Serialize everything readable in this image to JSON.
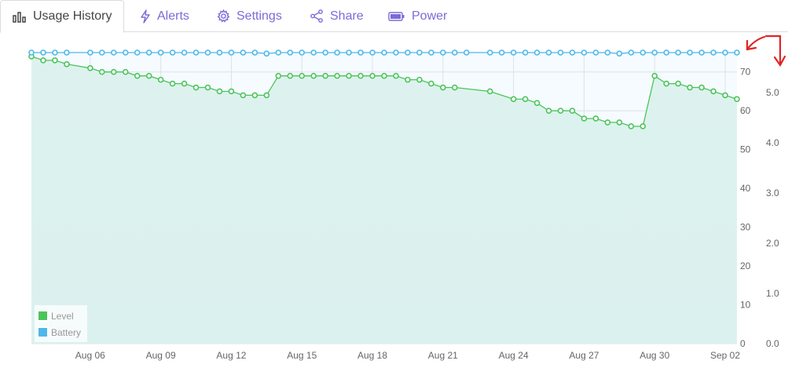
{
  "tabs": [
    {
      "label": "Usage History",
      "icon": "bar-chart-icon",
      "active": true
    },
    {
      "label": "Alerts",
      "icon": "lightning-icon",
      "active": false
    },
    {
      "label": "Settings",
      "icon": "gear-icon",
      "active": false
    },
    {
      "label": "Share",
      "icon": "share-icon",
      "active": false
    },
    {
      "label": "Power",
      "icon": "battery-icon",
      "active": false
    }
  ],
  "colors": {
    "level": "#4cc45c",
    "battery": "#4db8ea",
    "tab_text": "#7a6bd8",
    "annotation": "#e02424"
  },
  "chart_data": {
    "type": "line",
    "x_tick_labels": [
      "Aug 06",
      "Aug 09",
      "Aug 12",
      "Aug 15",
      "Aug 18",
      "Aug 21",
      "Aug 24",
      "Aug 27",
      "Aug 30",
      "Sep 02"
    ],
    "y_left": {
      "ticks": [
        "0",
        "10",
        "20",
        "30",
        "40",
        "50",
        "60",
        "70"
      ],
      "range": [
        0,
        75
      ]
    },
    "y_right": {
      "ticks": [
        "0.0",
        "1.0",
        "2.0",
        "3.0",
        "4.0",
        "5.0"
      ],
      "range": [
        0.0,
        5.8
      ]
    },
    "grid": true,
    "legend_position": "bottom-left",
    "legend": [
      "Level",
      "Battery"
    ],
    "series": [
      {
        "name": "Level",
        "axis": "left",
        "x": [
          3.5,
          4,
          4.5,
          5,
          6,
          6.5,
          7,
          7.5,
          8,
          8.5,
          9,
          9.5,
          10,
          10.5,
          11,
          11.5,
          12,
          12.5,
          13,
          13.5,
          14,
          14.5,
          15,
          15.5,
          16,
          16.5,
          17,
          17.5,
          18,
          18.5,
          19,
          19.5,
          20,
          20.5,
          21,
          21.5,
          23,
          24,
          24.5,
          25,
          25.5,
          26,
          26.5,
          27,
          27.5,
          28,
          28.5,
          29,
          29.5,
          30,
          30.5,
          31,
          31.5,
          32,
          32.5,
          33,
          33.5
        ],
        "y": [
          74,
          73,
          73,
          72,
          71,
          70,
          70,
          70,
          69,
          69,
          68,
          67,
          67,
          66,
          66,
          65,
          65,
          64,
          64,
          64,
          69,
          69,
          69,
          69,
          69,
          69,
          69,
          69,
          69,
          69,
          69,
          68,
          68,
          67,
          66,
          66,
          65,
          63,
          63,
          62,
          60,
          60,
          60,
          58,
          58,
          57,
          57,
          56,
          56,
          69,
          67,
          67,
          66,
          66,
          65,
          64,
          63
        ]
      },
      {
        "name": "Battery",
        "axis": "right",
        "x": [
          3.5,
          4,
          4.5,
          5,
          6,
          6.5,
          7,
          7.5,
          8,
          8.5,
          9,
          9.5,
          10,
          10.5,
          11,
          11.5,
          12,
          12.5,
          13,
          13.5,
          14,
          14.5,
          15,
          15.5,
          16,
          16.5,
          17,
          17.5,
          18,
          18.5,
          19,
          19.5,
          20,
          20.5,
          21,
          21.5,
          22,
          23,
          23.5,
          24,
          24.5,
          25,
          25.5,
          26,
          26.5,
          27,
          27.5,
          28,
          28.5,
          29,
          29.5,
          30,
          30.5,
          31,
          31.5,
          32,
          32.5,
          33,
          33.5
        ],
        "y": [
          5.8,
          5.8,
          5.8,
          5.8,
          5.8,
          5.8,
          5.8,
          5.8,
          5.8,
          5.8,
          5.8,
          5.8,
          5.8,
          5.8,
          5.8,
          5.8,
          5.8,
          5.8,
          5.8,
          5.78,
          5.8,
          5.8,
          5.8,
          5.8,
          5.8,
          5.8,
          5.8,
          5.8,
          5.8,
          5.8,
          5.8,
          5.8,
          5.8,
          5.8,
          5.8,
          5.8,
          5.8,
          5.8,
          5.8,
          5.8,
          5.8,
          5.8,
          5.8,
          5.8,
          5.8,
          5.8,
          5.8,
          5.8,
          5.78,
          5.8,
          5.8,
          5.8,
          5.8,
          5.8,
          5.8,
          5.8,
          5.8,
          5.8,
          5.8
        ]
      }
    ]
  }
}
